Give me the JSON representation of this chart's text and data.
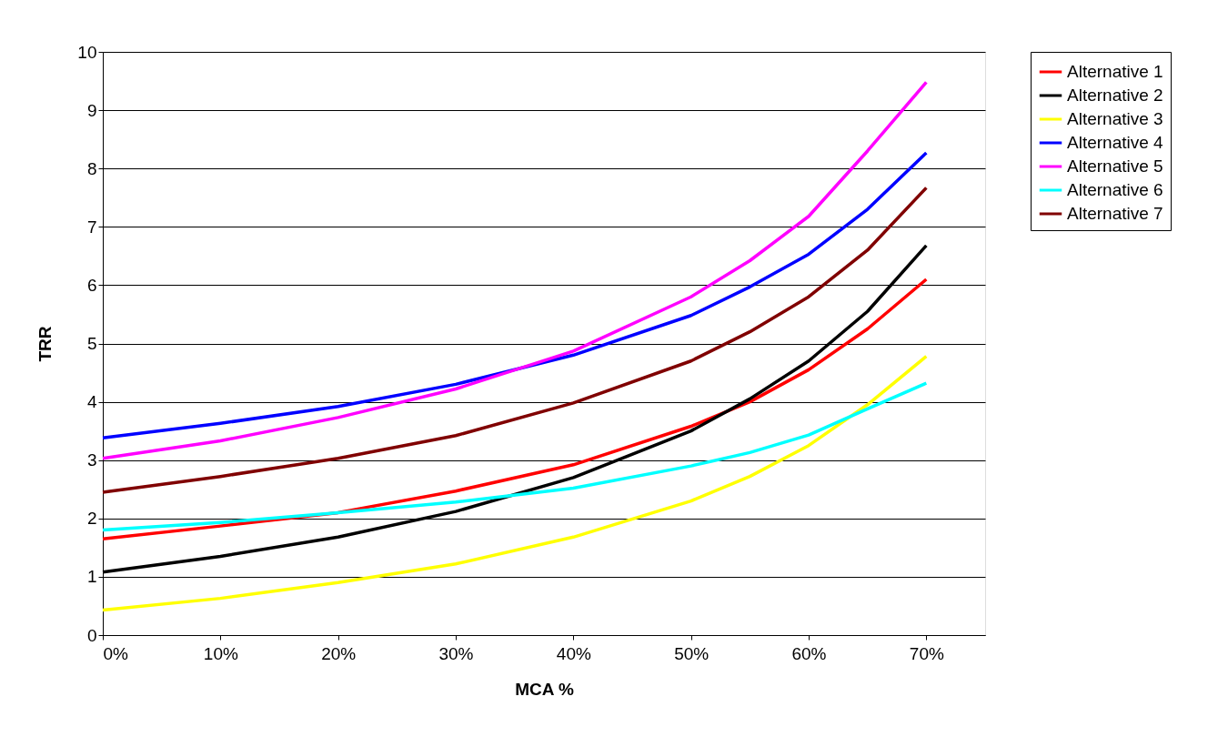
{
  "chart_data": {
    "type": "line",
    "xlabel": "MCA %",
    "ylabel": "TRR",
    "x": [
      0,
      10,
      20,
      30,
      40,
      50,
      55,
      60,
      65,
      70
    ],
    "xlim": [
      0,
      75
    ],
    "xticks": [
      {
        "value": 0,
        "label": "0%"
      },
      {
        "value": 10,
        "label": "10%"
      },
      {
        "value": 20,
        "label": "20%"
      },
      {
        "value": 30,
        "label": "30%"
      },
      {
        "value": 40,
        "label": "40%"
      },
      {
        "value": 50,
        "label": "50%"
      },
      {
        "value": 60,
        "label": "60%"
      },
      {
        "value": 70,
        "label": "70%"
      }
    ],
    "ylim": [
      0,
      10
    ],
    "yticks": [
      0,
      1,
      2,
      3,
      4,
      5,
      6,
      7,
      8,
      9,
      10
    ],
    "grid": "y",
    "legend": "right",
    "marker": "none",
    "line_style": "solid",
    "series": [
      {
        "name": "Alternative 1",
        "color": "#ff0000",
        "values": [
          1.65,
          1.87,
          2.1,
          2.47,
          2.92,
          3.58,
          4.0,
          4.55,
          5.25,
          6.1
        ]
      },
      {
        "name": "Alternative 2",
        "color": "#000000",
        "values": [
          1.08,
          1.35,
          1.68,
          2.12,
          2.7,
          3.5,
          4.05,
          4.7,
          5.55,
          6.68
        ]
      },
      {
        "name": "Alternative 3",
        "color": "#ffff00",
        "values": [
          0.43,
          0.63,
          0.9,
          1.22,
          1.68,
          2.3,
          2.72,
          3.25,
          3.95,
          4.78
        ]
      },
      {
        "name": "Alternative 4",
        "color": "#0000ff",
        "values": [
          3.38,
          3.63,
          3.92,
          4.3,
          4.8,
          5.48,
          5.97,
          6.53,
          7.3,
          8.27
        ]
      },
      {
        "name": "Alternative 5",
        "color": "#ff00ff",
        "values": [
          3.03,
          3.33,
          3.73,
          4.22,
          4.87,
          5.8,
          6.42,
          7.18,
          8.3,
          9.48
        ]
      },
      {
        "name": "Alternative 6",
        "color": "#00ffff",
        "values": [
          1.8,
          1.93,
          2.1,
          2.28,
          2.52,
          2.9,
          3.13,
          3.43,
          3.88,
          4.32
        ]
      },
      {
        "name": "Alternative 7",
        "color": "#800000",
        "values": [
          2.45,
          2.72,
          3.03,
          3.42,
          3.98,
          4.7,
          5.2,
          5.8,
          6.6,
          7.67
        ]
      }
    ]
  }
}
